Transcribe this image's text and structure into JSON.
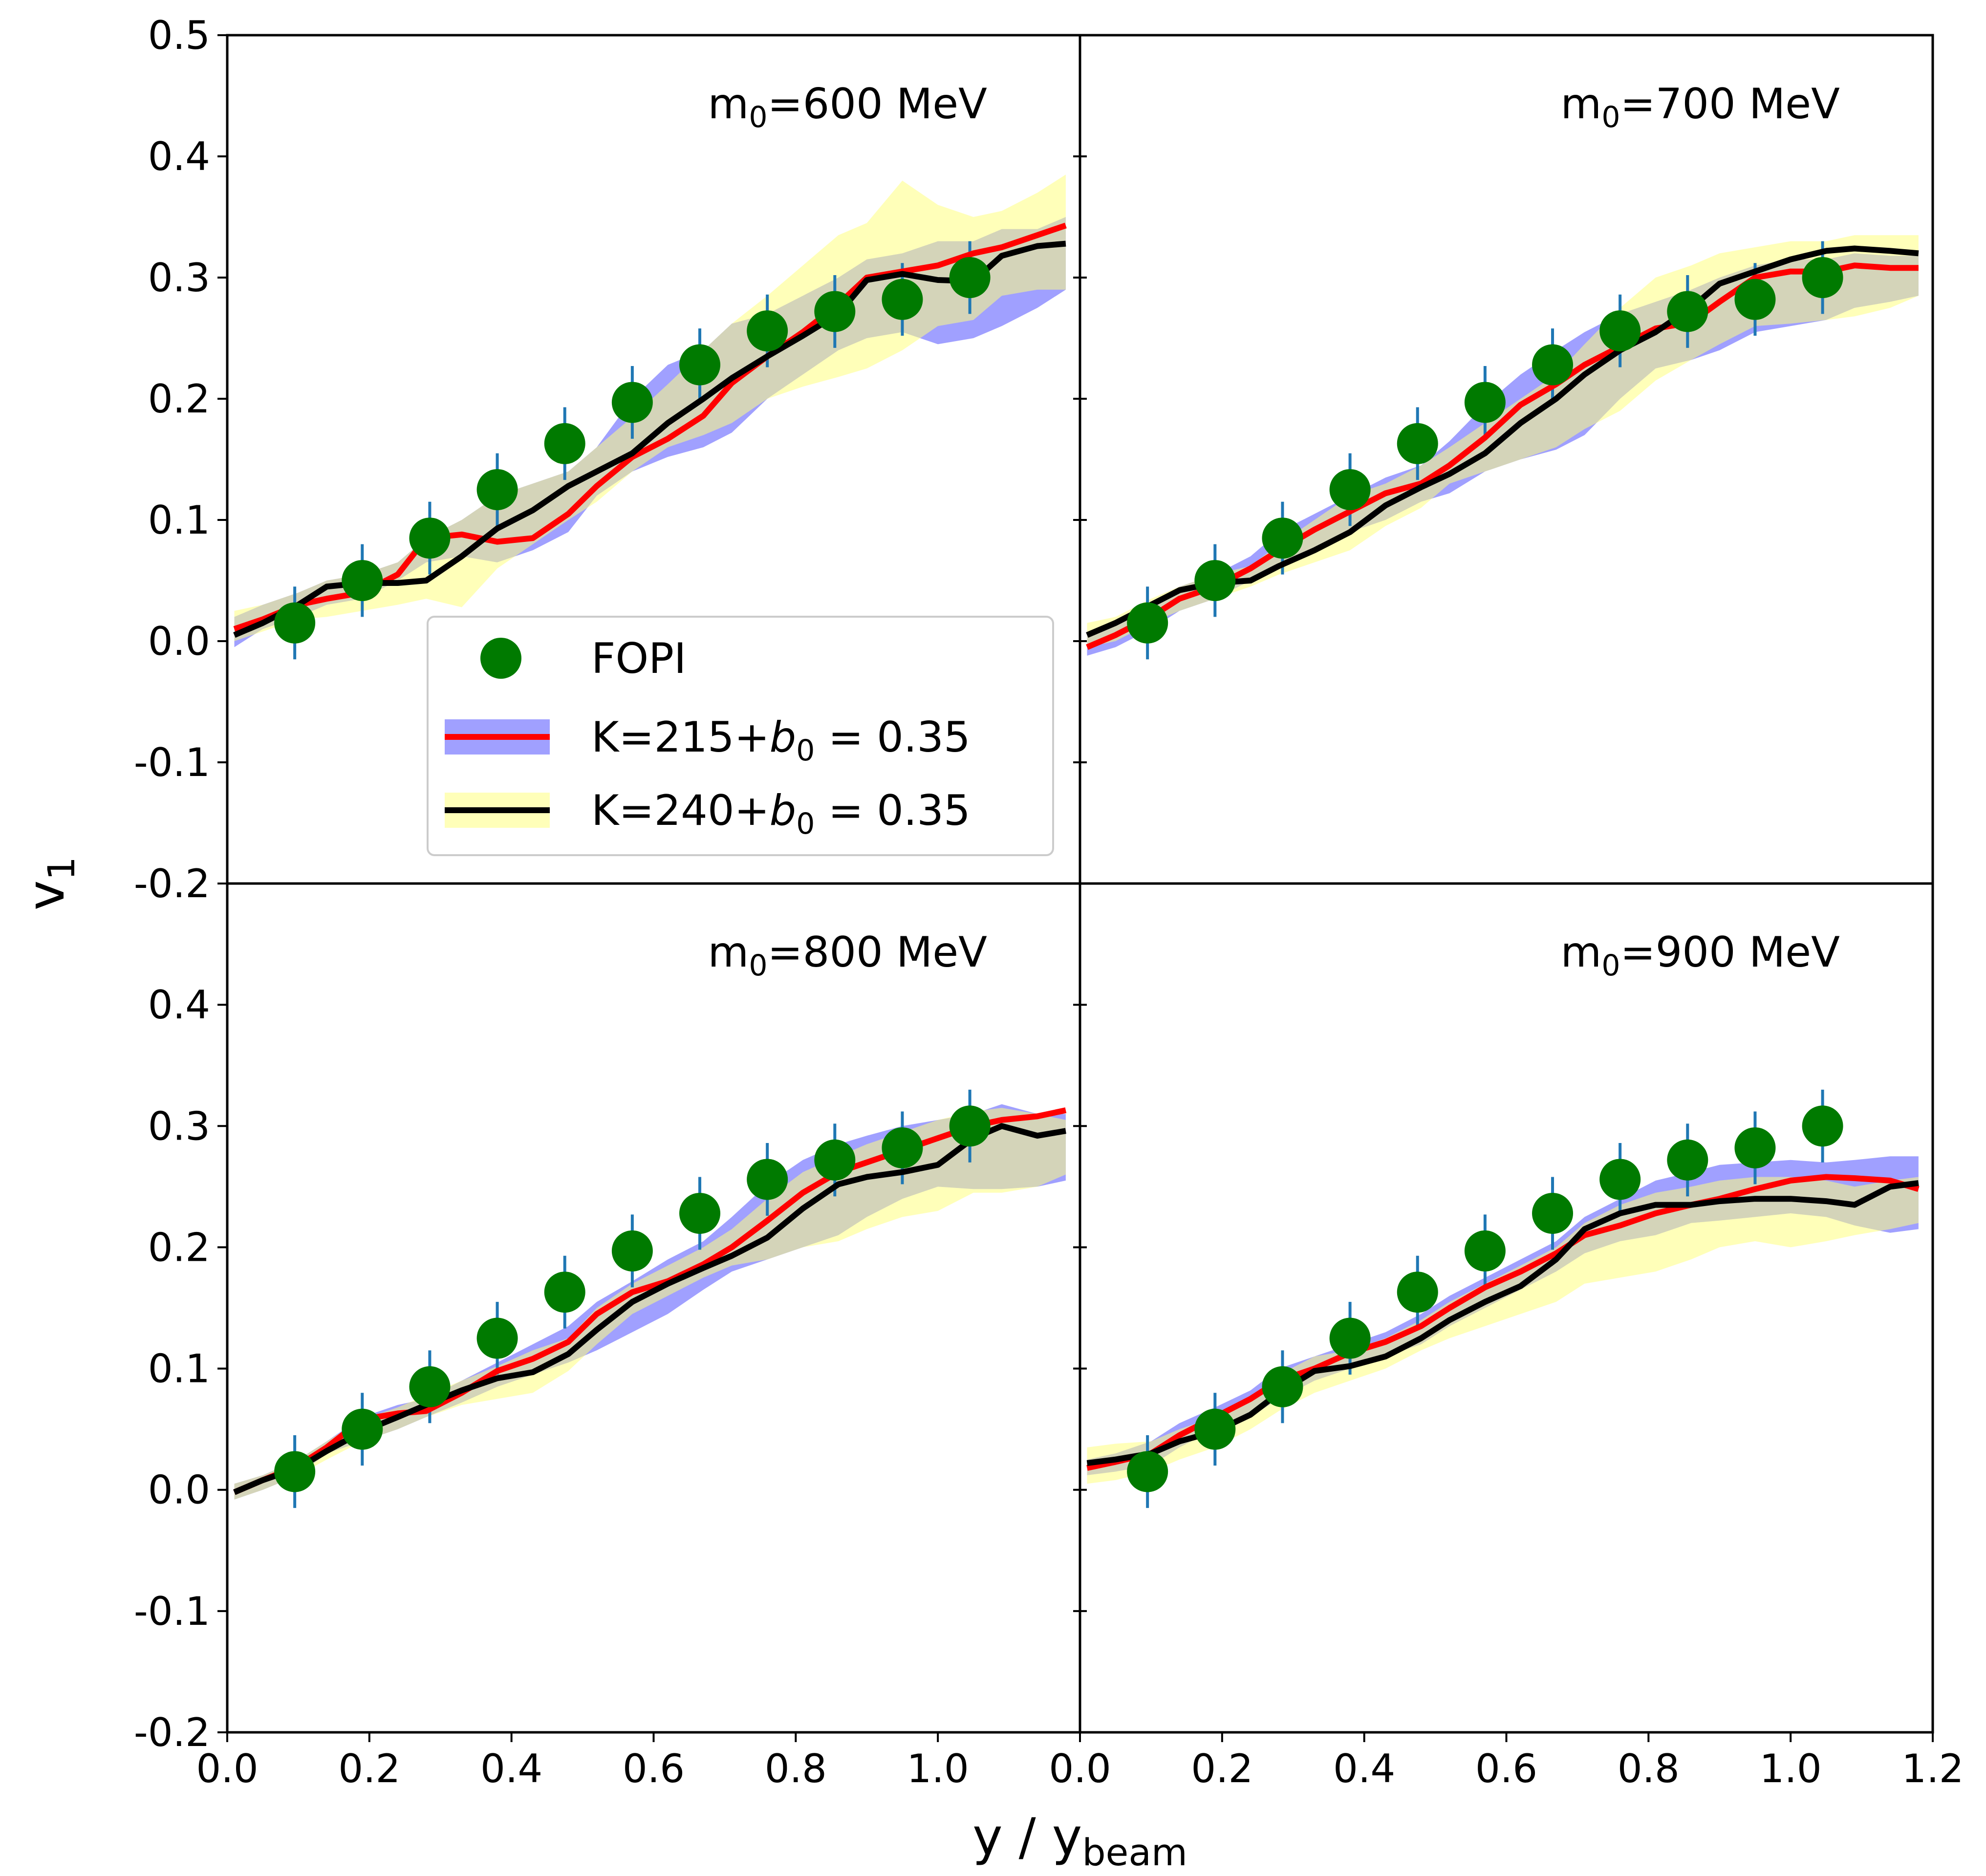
{
  "chart_data": {
    "type": "line",
    "layout": "2x2 grid of panels with shared axes",
    "xlabel": "y / y",
    "xlabel_sub": "beam",
    "ylabel": "v",
    "ylabel_sub": "1",
    "xlim": [
      0.0,
      1.2
    ],
    "ylim": [
      -0.2,
      0.5
    ],
    "x_ticks": [
      0.0,
      0.2,
      0.4,
      0.6,
      0.8,
      1.0,
      1.2
    ],
    "x_tick_labels": [
      "0.0",
      "0.2",
      "0.4",
      "0.6",
      "0.8",
      "1.0",
      "1.2"
    ],
    "x_tick_labels_left_panel": [
      "0.0",
      "0.2",
      "0.4",
      "0.6",
      "0.8",
      "1.0",
      "0.0"
    ],
    "y_ticks": [
      -0.2,
      -0.1,
      0.0,
      0.1,
      0.2,
      0.3,
      0.4,
      0.5
    ],
    "y_tick_labels_top": [
      "-0.2",
      "-0.1",
      "0.0",
      "0.1",
      "0.2",
      "0.3",
      "0.4",
      "0.5"
    ],
    "y_tick_labels_bottom": [
      "-0.2",
      "-0.1",
      "0.0",
      "0.1",
      "0.2",
      "0.3",
      "0.4",
      ""
    ],
    "grid": false,
    "legend": {
      "placement": "top-left panel, lower-right",
      "entries": [
        {
          "label": "FOPI",
          "kind": "marker",
          "color": "#007a00"
        },
        {
          "label": "K=215+",
          "math": "b",
          "math_sub": "0",
          "tail": " = 0.35",
          "kind": "line-band",
          "line_color": "#ff0000",
          "band_color": "#8080ff"
        },
        {
          "label": "K=240+",
          "math": "b",
          "math_sub": "0",
          "tail": " = 0.35",
          "kind": "line-band",
          "line_color": "#000000",
          "band_color": "#ffff80"
        }
      ]
    },
    "fopi": {
      "name": "FOPI",
      "x": [
        0.095,
        0.19,
        0.285,
        0.38,
        0.475,
        0.57,
        0.665,
        0.76,
        0.855,
        0.95,
        1.045
      ],
      "y": [
        0.015,
        0.05,
        0.085,
        0.125,
        0.163,
        0.197,
        0.228,
        0.256,
        0.272,
        0.282,
        0.3
      ],
      "yerr": 0.03,
      "marker_color": "#007a00",
      "errorbar_color": "#1f77b4"
    },
    "panels": [
      {
        "title": "m",
        "title_sub": "0",
        "title_tail": "=600 MeV",
        "x": [
          0.01,
          0.05,
          0.1,
          0.14,
          0.19,
          0.24,
          0.28,
          0.33,
          0.38,
          0.43,
          0.48,
          0.52,
          0.57,
          0.62,
          0.67,
          0.71,
          0.76,
          0.81,
          0.86,
          0.9,
          0.95,
          1.0,
          1.05,
          1.09,
          1.14,
          1.18
        ],
        "series": [
          {
            "name": "K=215+b0=0.35",
            "color": "#ff0000",
            "values": [
              0.01,
              0.018,
              0.03,
              0.035,
              0.04,
              0.055,
              0.085,
              0.088,
              0.082,
              0.085,
              0.105,
              0.128,
              0.152,
              0.167,
              0.186,
              0.213,
              0.235,
              0.255,
              0.278,
              0.3,
              0.305,
              0.31,
              0.32,
              0.325,
              0.335,
              0.343
            ],
            "band_color": "#8080ff",
            "band_low": [
              -0.005,
              0.01,
              0.02,
              0.03,
              0.035,
              0.05,
              0.065,
              0.07,
              0.065,
              0.075,
              0.09,
              0.12,
              0.14,
              0.152,
              0.16,
              0.172,
              0.2,
              0.22,
              0.24,
              0.25,
              0.255,
              0.245,
              0.25,
              0.26,
              0.275,
              0.29
            ],
            "band_high": [
              0.02,
              0.03,
              0.04,
              0.05,
              0.055,
              0.065,
              0.085,
              0.1,
              0.12,
              0.13,
              0.14,
              0.16,
              0.2,
              0.228,
              0.24,
              0.262,
              0.27,
              0.285,
              0.3,
              0.315,
              0.32,
              0.33,
              0.33,
              0.34,
              0.34,
              0.35
            ]
          },
          {
            "name": "K=240+b0=0.35",
            "color": "#000000",
            "values": [
              0.005,
              0.015,
              0.03,
              0.045,
              0.048,
              0.048,
              0.05,
              0.07,
              0.093,
              0.108,
              0.128,
              0.14,
              0.155,
              0.18,
              0.2,
              0.217,
              0.235,
              0.252,
              0.27,
              0.298,
              0.303,
              0.298,
              0.297,
              0.318,
              0.326,
              0.328
            ],
            "band_color": "#ffff80",
            "band_low": [
              0.0,
              0.008,
              0.018,
              0.02,
              0.025,
              0.03,
              0.035,
              0.028,
              0.06,
              0.08,
              0.1,
              0.115,
              0.14,
              0.16,
              0.17,
              0.18,
              0.2,
              0.21,
              0.218,
              0.225,
              0.24,
              0.26,
              0.265,
              0.285,
              0.29,
              0.29
            ],
            "band_high": [
              0.025,
              0.03,
              0.04,
              0.05,
              0.055,
              0.065,
              0.085,
              0.1,
              0.12,
              0.13,
              0.14,
              0.16,
              0.185,
              0.212,
              0.24,
              0.262,
              0.285,
              0.31,
              0.335,
              0.345,
              0.38,
              0.36,
              0.35,
              0.355,
              0.37,
              0.385
            ]
          }
        ]
      },
      {
        "title": "m",
        "title_sub": "0",
        "title_tail": "=700 MeV",
        "x": [
          0.01,
          0.05,
          0.1,
          0.14,
          0.19,
          0.24,
          0.28,
          0.33,
          0.38,
          0.43,
          0.48,
          0.52,
          0.57,
          0.62,
          0.67,
          0.71,
          0.76,
          0.81,
          0.86,
          0.9,
          0.95,
          1.0,
          1.05,
          1.09,
          1.14,
          1.18
        ],
        "series": [
          {
            "name": "K=215+b0=0.35",
            "color": "#ff0000",
            "values": [
              -0.005,
              0.005,
              0.02,
              0.035,
              0.045,
              0.06,
              0.075,
              0.092,
              0.107,
              0.122,
              0.13,
              0.145,
              0.168,
              0.195,
              0.212,
              0.228,
              0.243,
              0.258,
              0.263,
              0.28,
              0.3,
              0.305,
              0.305,
              0.31,
              0.308,
              0.308
            ],
            "band_color": "#8080ff",
            "band_low": [
              -0.012,
              -0.005,
              0.01,
              0.025,
              0.035,
              0.05,
              0.065,
              0.075,
              0.09,
              0.1,
              0.115,
              0.122,
              0.14,
              0.15,
              0.158,
              0.17,
              0.2,
              0.225,
              0.232,
              0.24,
              0.255,
              0.26,
              0.265,
              0.275,
              0.28,
              0.285
            ],
            "band_high": [
              0.005,
              0.015,
              0.03,
              0.045,
              0.055,
              0.07,
              0.09,
              0.105,
              0.12,
              0.135,
              0.145,
              0.165,
              0.195,
              0.22,
              0.24,
              0.255,
              0.27,
              0.28,
              0.29,
              0.3,
              0.31,
              0.315,
              0.315,
              0.32,
              0.318,
              0.318
            ]
          },
          {
            "name": "K=240+b0=0.35",
            "color": "#000000",
            "values": [
              0.005,
              0.015,
              0.03,
              0.042,
              0.048,
              0.05,
              0.062,
              0.075,
              0.09,
              0.112,
              0.127,
              0.138,
              0.155,
              0.18,
              0.2,
              0.22,
              0.24,
              0.255,
              0.275,
              0.295,
              0.305,
              0.315,
              0.322,
              0.324,
              0.322,
              0.32
            ],
            "band_color": "#ffff80",
            "band_low": [
              -0.005,
              0.0,
              0.015,
              0.025,
              0.035,
              0.045,
              0.055,
              0.065,
              0.075,
              0.095,
              0.11,
              0.13,
              0.14,
              0.15,
              0.16,
              0.175,
              0.19,
              0.215,
              0.232,
              0.245,
              0.26,
              0.262,
              0.265,
              0.268,
              0.275,
              0.285
            ],
            "band_high": [
              0.015,
              0.02,
              0.035,
              0.045,
              0.055,
              0.062,
              0.08,
              0.1,
              0.12,
              0.13,
              0.145,
              0.16,
              0.18,
              0.2,
              0.22,
              0.245,
              0.275,
              0.3,
              0.31,
              0.32,
              0.325,
              0.33,
              0.33,
              0.335,
              0.335,
              0.335
            ]
          }
        ]
      },
      {
        "title": "m",
        "title_sub": "0",
        "title_tail": "=800 MeV",
        "x": [
          0.01,
          0.05,
          0.1,
          0.14,
          0.19,
          0.24,
          0.28,
          0.33,
          0.38,
          0.43,
          0.48,
          0.52,
          0.57,
          0.62,
          0.67,
          0.71,
          0.76,
          0.81,
          0.86,
          0.9,
          0.95,
          1.0,
          1.05,
          1.09,
          1.14,
          1.18
        ],
        "series": [
          {
            "name": "K=215+b0=0.35",
            "color": "#ff0000",
            "values": [
              -0.002,
              0.008,
              0.02,
              0.035,
              0.058,
              0.063,
              0.065,
              0.08,
              0.098,
              0.108,
              0.122,
              0.145,
              0.163,
              0.172,
              0.186,
              0.2,
              0.222,
              0.245,
              0.262,
              0.27,
              0.28,
              0.29,
              0.3,
              0.305,
              0.308,
              0.313
            ],
            "band_color": "#8080ff",
            "band_low": [
              -0.008,
              0.0,
              0.012,
              0.03,
              0.04,
              0.05,
              0.06,
              0.072,
              0.085,
              0.095,
              0.105,
              0.115,
              0.13,
              0.145,
              0.165,
              0.18,
              0.19,
              0.2,
              0.21,
              0.225,
              0.24,
              0.25,
              0.248,
              0.248,
              0.25,
              0.255
            ],
            "band_high": [
              0.005,
              0.012,
              0.025,
              0.04,
              0.06,
              0.07,
              0.075,
              0.09,
              0.105,
              0.12,
              0.135,
              0.155,
              0.172,
              0.19,
              0.205,
              0.225,
              0.252,
              0.272,
              0.285,
              0.292,
              0.3,
              0.305,
              0.31,
              0.318,
              0.31,
              0.31
            ]
          },
          {
            "name": "K=240+b0=0.35",
            "color": "#000000",
            "values": [
              -0.002,
              0.008,
              0.018,
              0.032,
              0.048,
              0.06,
              0.07,
              0.082,
              0.092,
              0.097,
              0.112,
              0.132,
              0.155,
              0.17,
              0.183,
              0.193,
              0.208,
              0.232,
              0.252,
              0.258,
              0.262,
              0.268,
              0.29,
              0.3,
              0.292,
              0.296
            ],
            "band_color": "#ffff80",
            "band_low": [
              -0.008,
              0.0,
              0.012,
              0.025,
              0.04,
              0.05,
              0.06,
              0.07,
              0.075,
              0.08,
              0.098,
              0.12,
              0.145,
              0.16,
              0.175,
              0.185,
              0.19,
              0.2,
              0.205,
              0.215,
              0.225,
              0.23,
              0.245,
              0.245,
              0.25,
              0.26
            ],
            "band_high": [
              0.005,
              0.012,
              0.025,
              0.04,
              0.058,
              0.068,
              0.078,
              0.09,
              0.102,
              0.115,
              0.125,
              0.15,
              0.17,
              0.185,
              0.2,
              0.215,
              0.24,
              0.262,
              0.275,
              0.285,
              0.295,
              0.305,
              0.312,
              0.315,
              0.31,
              0.305
            ]
          }
        ]
      },
      {
        "title": "m",
        "title_sub": "0",
        "title_tail": "=900 MeV",
        "x": [
          0.01,
          0.05,
          0.1,
          0.14,
          0.19,
          0.24,
          0.28,
          0.33,
          0.38,
          0.43,
          0.48,
          0.52,
          0.57,
          0.62,
          0.67,
          0.71,
          0.76,
          0.81,
          0.86,
          0.9,
          0.95,
          1.0,
          1.05,
          1.09,
          1.14,
          1.18
        ],
        "series": [
          {
            "name": "K=215+b0=0.35",
            "color": "#ff0000",
            "values": [
              0.018,
              0.023,
              0.03,
              0.045,
              0.06,
              0.075,
              0.09,
              0.1,
              0.113,
              0.122,
              0.135,
              0.15,
              0.167,
              0.18,
              0.195,
              0.21,
              0.218,
              0.228,
              0.235,
              0.24,
              0.248,
              0.255,
              0.258,
              0.257,
              0.255,
              0.248
            ],
            "band_color": "#8080ff",
            "band_low": [
              0.012,
              0.015,
              0.02,
              0.035,
              0.05,
              0.06,
              0.075,
              0.09,
              0.1,
              0.11,
              0.12,
              0.135,
              0.15,
              0.165,
              0.18,
              0.195,
              0.205,
              0.21,
              0.22,
              0.222,
              0.225,
              0.228,
              0.225,
              0.218,
              0.212,
              0.215
            ],
            "band_high": [
              0.025,
              0.03,
              0.04,
              0.055,
              0.068,
              0.082,
              0.1,
              0.11,
              0.12,
              0.13,
              0.145,
              0.16,
              0.175,
              0.19,
              0.205,
              0.225,
              0.24,
              0.255,
              0.262,
              0.268,
              0.27,
              0.272,
              0.27,
              0.272,
              0.275,
              0.275
            ]
          },
          {
            "name": "K=240+b0=0.35",
            "color": "#000000",
            "values": [
              0.022,
              0.025,
              0.03,
              0.04,
              0.048,
              0.062,
              0.08,
              0.098,
              0.102,
              0.11,
              0.125,
              0.14,
              0.155,
              0.168,
              0.19,
              0.215,
              0.228,
              0.235,
              0.235,
              0.238,
              0.24,
              0.24,
              0.238,
              0.235,
              0.25,
              0.253
            ],
            "band_color": "#ffff80",
            "band_low": [
              0.005,
              0.008,
              0.015,
              0.025,
              0.035,
              0.05,
              0.065,
              0.08,
              0.09,
              0.1,
              0.115,
              0.125,
              0.135,
              0.145,
              0.155,
              0.17,
              0.175,
              0.18,
              0.19,
              0.2,
              0.205,
              0.2,
              0.205,
              0.21,
              0.215,
              0.22
            ],
            "band_high": [
              0.035,
              0.038,
              0.04,
              0.05,
              0.06,
              0.075,
              0.095,
              0.11,
              0.115,
              0.125,
              0.14,
              0.155,
              0.17,
              0.185,
              0.2,
              0.22,
              0.235,
              0.245,
              0.25,
              0.255,
              0.258,
              0.258,
              0.255,
              0.25,
              0.255,
              0.258
            ]
          }
        ]
      }
    ]
  }
}
